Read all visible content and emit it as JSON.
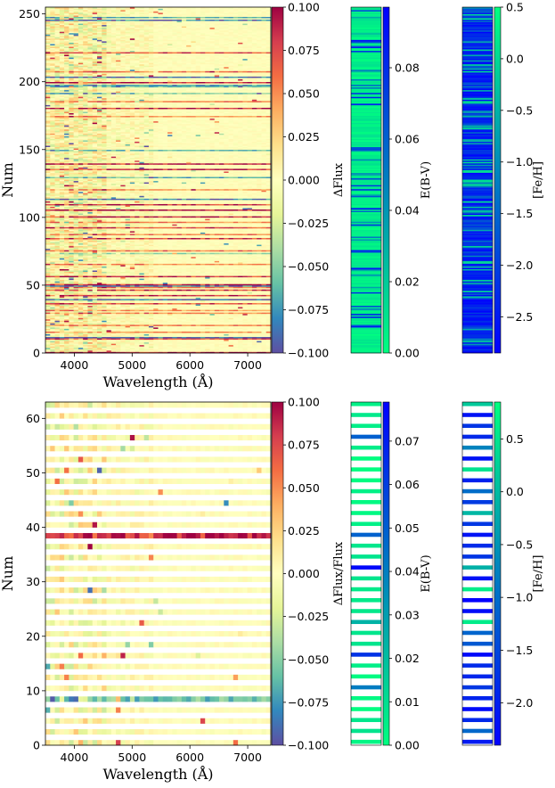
{
  "chart_data": [
    {
      "type": "heatmap",
      "ylabel": "Num",
      "xlabel": "Wavelength (Å)",
      "xlim": [
        3500,
        7400
      ],
      "ylim": [
        0,
        255
      ],
      "xticks": [
        "4000",
        "5000",
        "6000",
        "7000"
      ],
      "xtick_values": [
        4000,
        5000,
        6000,
        7000
      ],
      "yticks": [
        "0",
        "50",
        "100",
        "150",
        "200",
        "250"
      ],
      "ytick_values": [
        0,
        50,
        100,
        150,
        200,
        250
      ],
      "colorbar": {
        "label": "ΔFlux",
        "range": [
          -0.1,
          0.1
        ],
        "colormap": "Spectral_r",
        "ticks": [
          "0.100",
          "0.075",
          "0.050",
          "0.025",
          "0.000",
          "−0.025",
          "−0.050",
          "−0.075",
          "−0.100"
        ],
        "tick_values": [
          0.1,
          0.075,
          0.05,
          0.025,
          0.0,
          -0.025,
          -0.05,
          -0.075,
          -0.1
        ]
      },
      "side_panels": [
        {
          "label": "E(B-V)",
          "range": [
            0,
            0.097
          ],
          "colormap": "winter_r",
          "ticks": [
            "0.00",
            "0.02",
            "0.04",
            "0.06",
            "0.08"
          ],
          "tick_values": [
            0,
            0.02,
            0.04,
            0.06,
            0.08
          ]
        },
        {
          "label": "[Fe/H]",
          "range": [
            -2.85,
            0.5
          ],
          "colormap": "winter",
          "ticks": [
            "0.5",
            "0.0",
            "−0.5",
            "−1.0",
            "−1.5",
            "−2.0",
            "−2.5"
          ],
          "tick_values": [
            0.5,
            0.0,
            -0.5,
            -1.0,
            -1.5,
            -2.0,
            -2.5
          ]
        }
      ]
    },
    {
      "type": "heatmap",
      "ylabel": "Num",
      "xlabel": "Wavelength (Å)",
      "xlim": [
        3500,
        7400
      ],
      "ylim": [
        0,
        63
      ],
      "xticks": [
        "4000",
        "5000",
        "6000",
        "7000"
      ],
      "xtick_values": [
        4000,
        5000,
        6000,
        7000
      ],
      "yticks": [
        "0",
        "10",
        "20",
        "30",
        "40",
        "50",
        "60"
      ],
      "ytick_values": [
        0,
        10,
        20,
        30,
        40,
        50,
        60
      ],
      "colorbar": {
        "label": "ΔFlux/Flux",
        "range": [
          -0.1,
          0.1
        ],
        "colormap": "Spectral_r",
        "ticks": [
          "0.100",
          "0.075",
          "0.050",
          "0.025",
          "0.000",
          "−0.025",
          "−0.050",
          "−0.075",
          "−0.100"
        ],
        "tick_values": [
          0.1,
          0.075,
          0.05,
          0.025,
          0.0,
          -0.025,
          -0.05,
          -0.075,
          -0.1
        ]
      },
      "side_panels": [
        {
          "label": "E(B-V)",
          "range": [
            0,
            0.079
          ],
          "colormap": "winter_r",
          "ticks": [
            "0.00",
            "0.01",
            "0.02",
            "0.03",
            "0.04",
            "0.05",
            "0.06",
            "0.07"
          ],
          "tick_values": [
            0,
            0.01,
            0.02,
            0.03,
            0.04,
            0.05,
            0.06,
            0.07
          ]
        },
        {
          "label": "[Fe/H]",
          "range": [
            -2.4,
            0.85
          ],
          "colormap": "winter",
          "ticks": [
            "0.5",
            "0.0",
            "−0.5",
            "−1.0",
            "−1.5",
            "−2.0"
          ],
          "tick_values": [
            0.5,
            0.0,
            -0.5,
            -1.0,
            -1.5,
            -2.0
          ]
        }
      ]
    }
  ]
}
